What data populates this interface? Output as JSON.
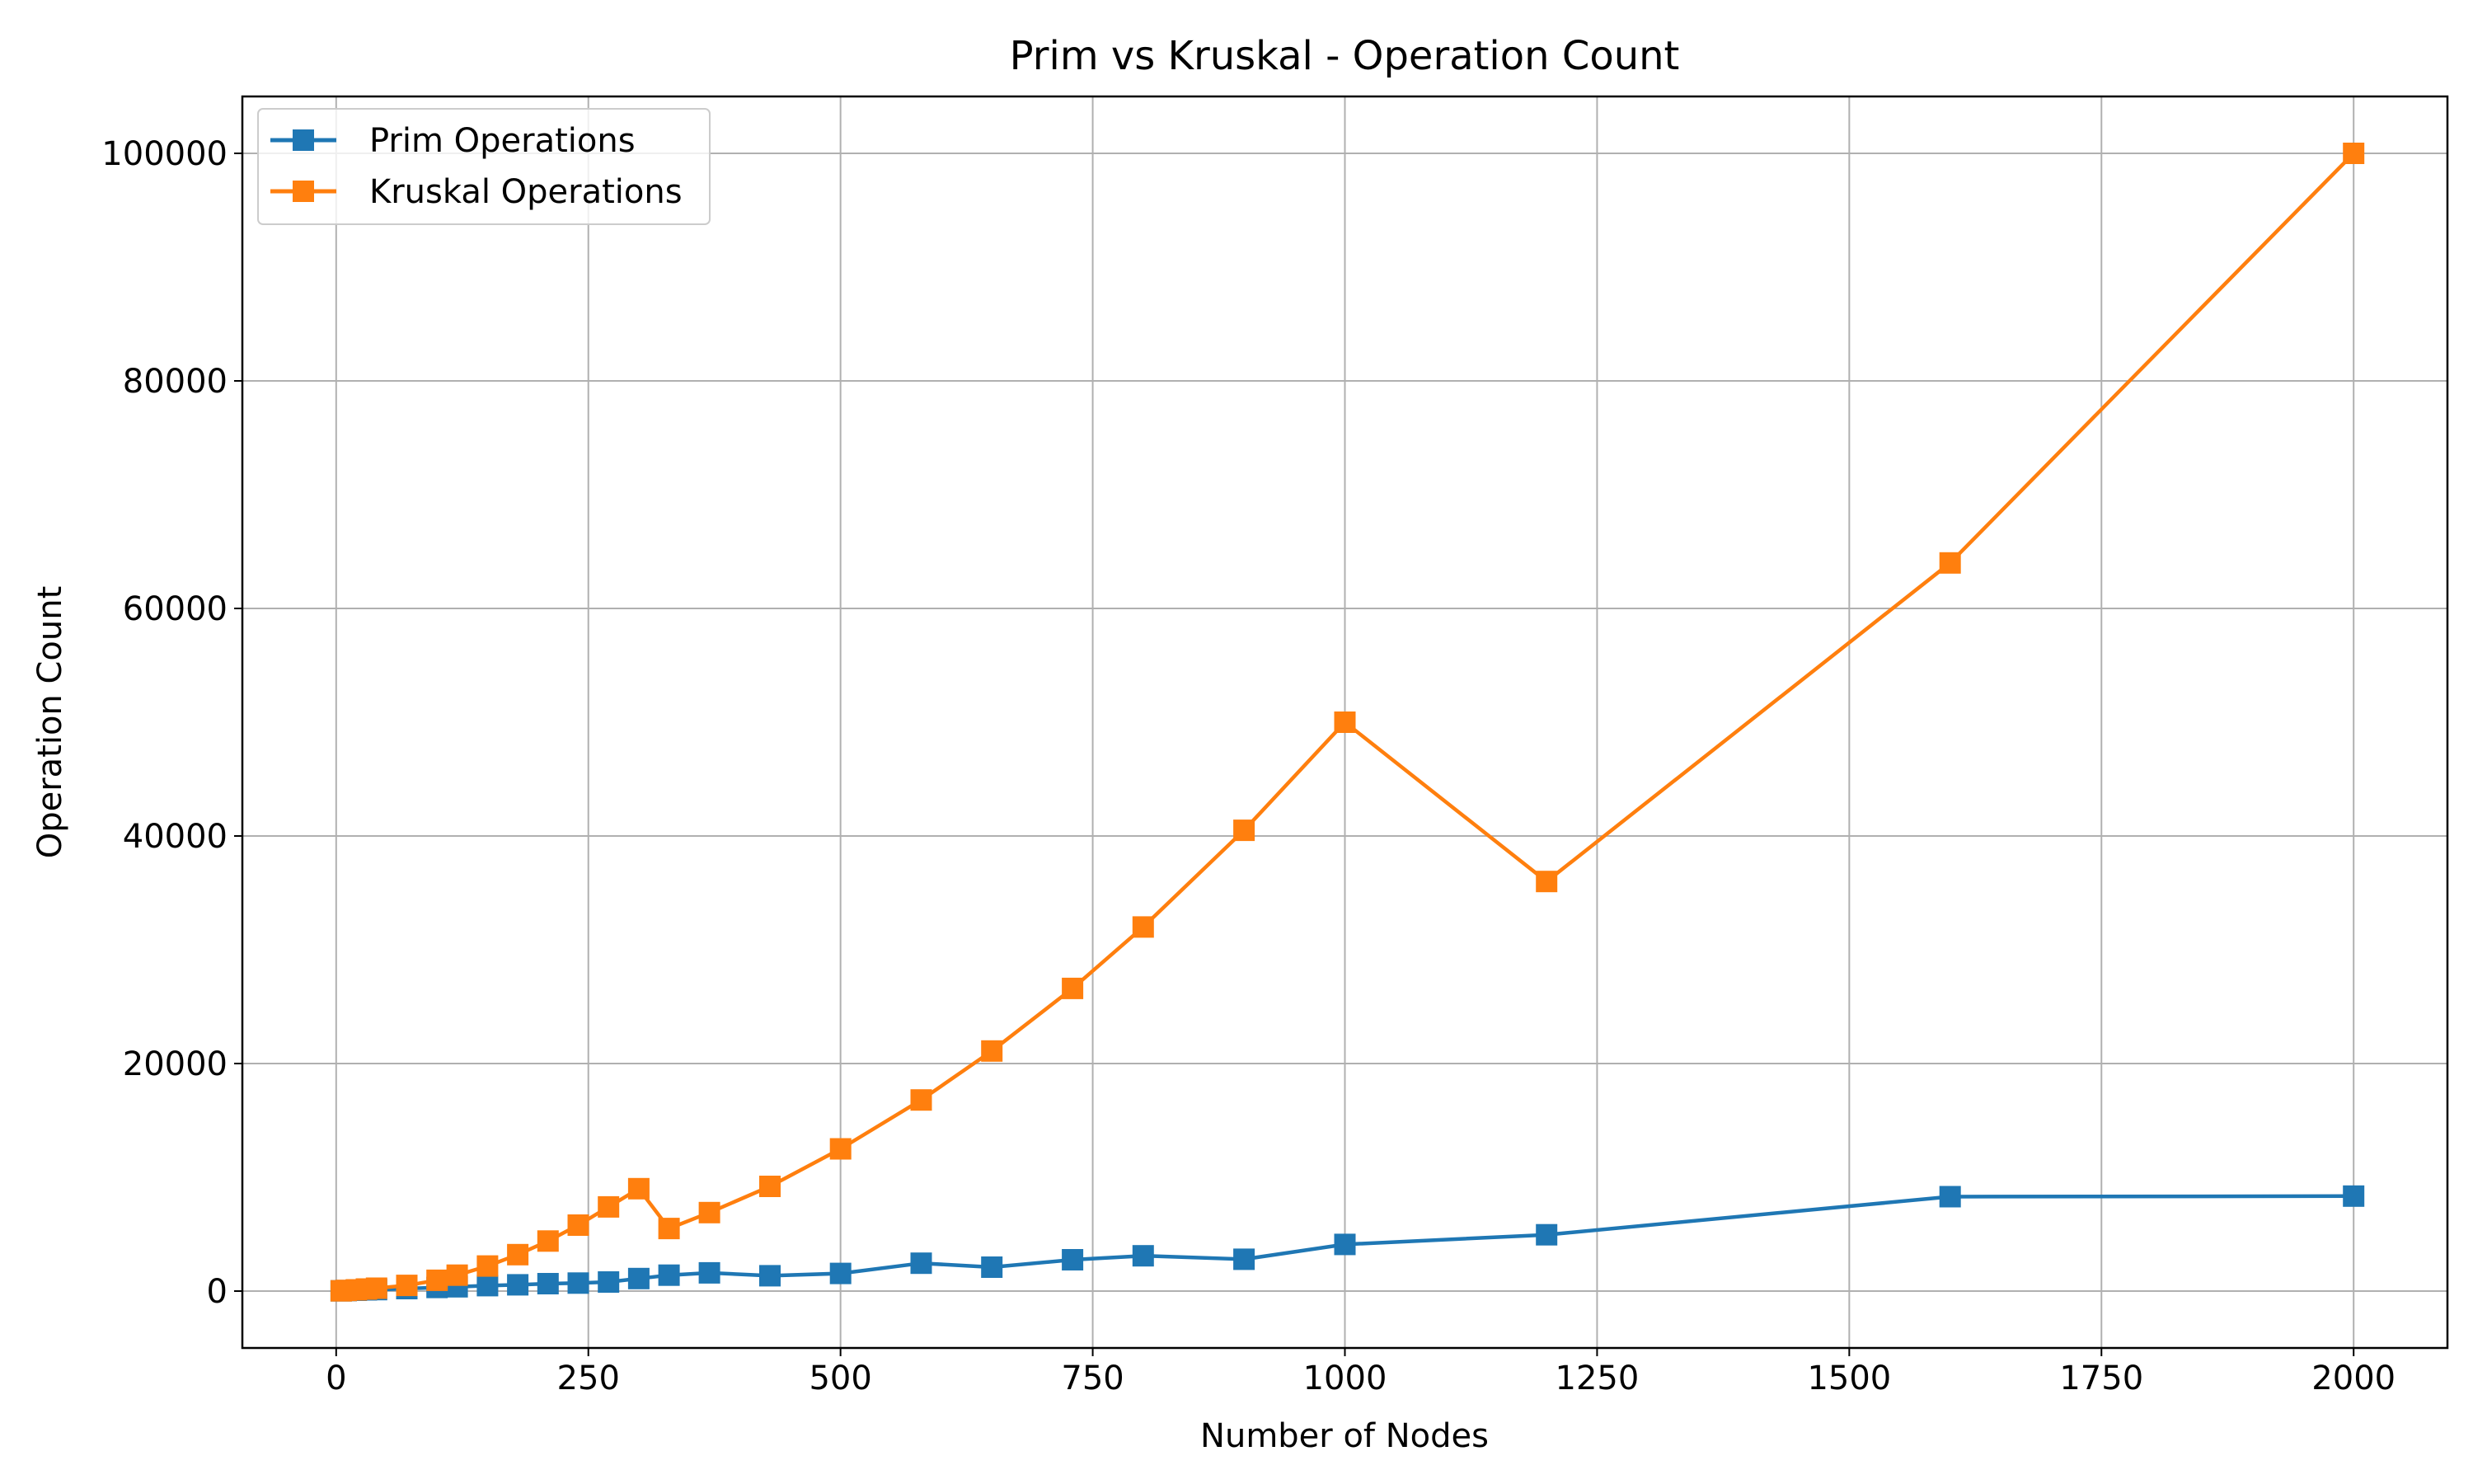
{
  "chart_data": {
    "type": "line",
    "title": "Prim vs Kruskal - Operation Count",
    "xlabel": "Number of Nodes",
    "ylabel": "Operation Count",
    "xlim": [
      -93,
      2093
    ],
    "ylim": [
      -5000,
      105000
    ],
    "x_ticks": [
      0,
      250,
      500,
      750,
      1000,
      1250,
      1500,
      1750,
      2000
    ],
    "y_ticks": [
      0,
      20000,
      40000,
      60000,
      80000,
      100000
    ],
    "grid": true,
    "legend_position": "top-left",
    "series": [
      {
        "name": "Prim Operations",
        "color": "#1f77b4",
        "marker": "square",
        "x": [
          5,
          10,
          20,
          30,
          40,
          70,
          100,
          120,
          150,
          180,
          210,
          240,
          270,
          300,
          330,
          370,
          430,
          500,
          580,
          650,
          730,
          800,
          900,
          1000,
          1200,
          1600,
          2000
        ],
        "y": [
          20,
          40,
          70,
          110,
          130,
          220,
          320,
          380,
          480,
          550,
          650,
          700,
          800,
          1100,
          1400,
          1600,
          1350,
          1550,
          2450,
          2100,
          2750,
          3100,
          2800,
          4100,
          4950,
          8300,
          8350
        ]
      },
      {
        "name": "Kruskal Operations",
        "color": "#ff7f0e",
        "marker": "square",
        "x": [
          5,
          10,
          20,
          30,
          40,
          70,
          100,
          120,
          150,
          180,
          210,
          240,
          270,
          300,
          330,
          370,
          430,
          500,
          580,
          650,
          730,
          800,
          900,
          1000,
          1200,
          1600,
          2000
        ],
        "y": [
          25,
          60,
          110,
          180,
          250,
          500,
          950,
          1400,
          2200,
          3200,
          4400,
          5800,
          7400,
          9000,
          5500,
          6900,
          9200,
          12500,
          16800,
          21100,
          26600,
          32000,
          40500,
          50000,
          36000,
          64000,
          100000
        ]
      }
    ]
  }
}
